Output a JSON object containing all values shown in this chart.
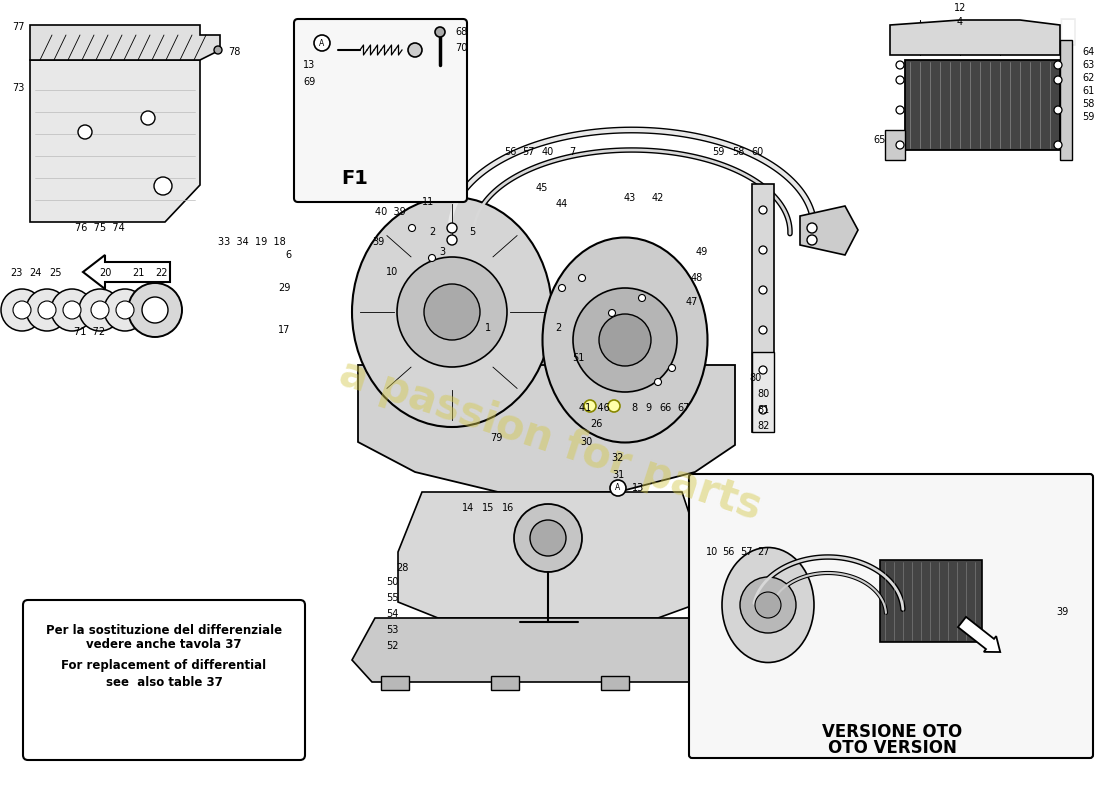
{
  "bg_color": "#ffffff",
  "fig_width": 11.0,
  "fig_height": 8.0,
  "watermark_text": "a passion for parts",
  "watermark_color": "#d4c84a",
  "watermark_alpha": 0.45,
  "note_lines": [
    "Per la sostituzione del differenziale",
    "vedere anche tavola 37",
    "For replacement of differential",
    "see  also table 37"
  ],
  "oto_lines": [
    "VERSIONE OTO",
    "OTO VERSION"
  ]
}
